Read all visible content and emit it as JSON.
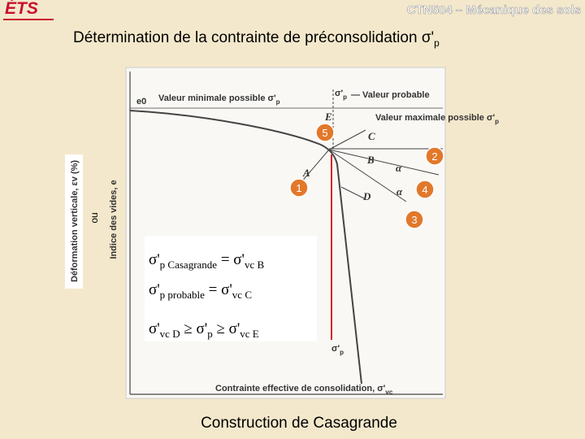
{
  "header": {
    "logo": "ÉTS",
    "course": "CTN504 – Mécanique des sols"
  },
  "title": {
    "text": "Détermination de la contrainte de préconsolidation σ'",
    "sub": "p"
  },
  "figure": {
    "y_label_strain": "Déformation verticale, εv (%)",
    "y_or": "ou",
    "y_label_void": "Indice des vides, e",
    "e0": "e0",
    "min_label": "Valeur minimale possible σ'",
    "min_sub": "p",
    "probable_sigma": "σ'",
    "probable_sub": "p",
    "probable_label": "— Valeur probable",
    "max_label": "Valeur maximale possible σ'",
    "max_sub": "p",
    "points": [
      "E",
      "C",
      "B",
      "A",
      "D"
    ],
    "alpha": "α",
    "x_label": "Contrainte effective de consolidation, σ'",
    "x_sub": "vc",
    "bottom_sigma": "σ'",
    "bottom_sub": "p",
    "markers": [
      "5",
      "2",
      "1",
      "4",
      "3"
    ]
  },
  "equations": [
    [
      "σ'",
      "p Casagrande",
      "  = σ'",
      "vc B"
    ],
    [
      "σ'",
      "p probable",
      "  = σ'",
      "vc C"
    ],
    [
      "σ'",
      "vc D",
      " ≥ σ'",
      "p",
      " ≥ σ'",
      "vc E"
    ]
  ],
  "caption": "Construction de Casagrande"
}
